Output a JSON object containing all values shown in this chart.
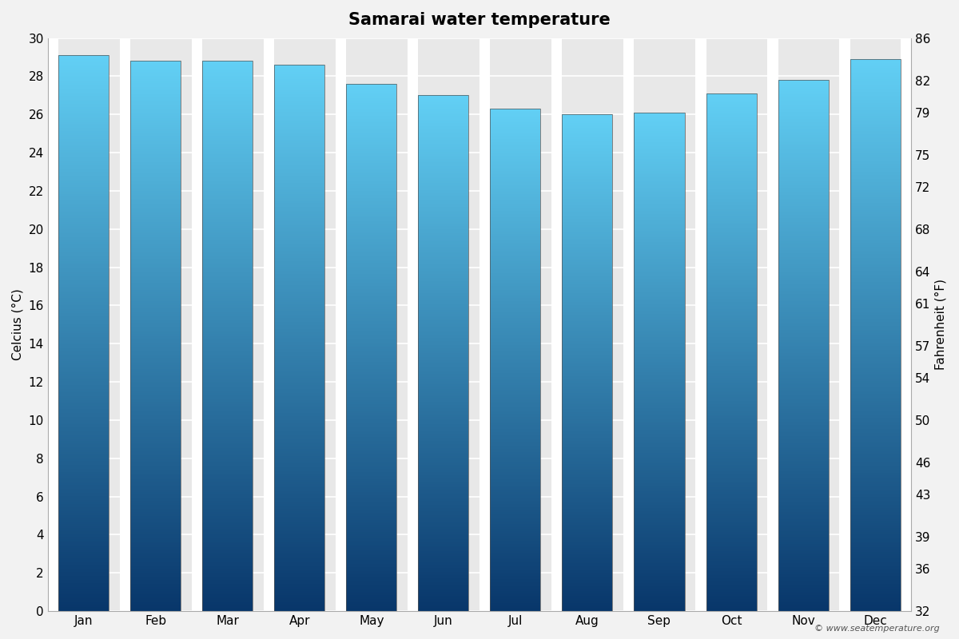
{
  "title": "Samarai water temperature",
  "months": [
    "Jan",
    "Feb",
    "Mar",
    "Apr",
    "May",
    "Jun",
    "Jul",
    "Aug",
    "Sep",
    "Oct",
    "Nov",
    "Dec"
  ],
  "celsius_values": [
    29.1,
    28.8,
    28.8,
    28.6,
    27.6,
    27.0,
    26.3,
    26.0,
    26.1,
    27.1,
    27.8,
    28.9
  ],
  "ylim_celsius": [
    0,
    30
  ],
  "ylim_fahrenheit": [
    32,
    86
  ],
  "yticks_celsius": [
    0,
    2,
    4,
    6,
    8,
    10,
    12,
    14,
    16,
    18,
    20,
    22,
    24,
    26,
    28,
    30
  ],
  "yticks_fahrenheit": [
    32,
    36,
    39,
    43,
    46,
    50,
    54,
    57,
    61,
    64,
    68,
    72,
    75,
    79,
    82,
    86
  ],
  "ylabel_left": "Celcius (°C)",
  "ylabel_right": "Fahrenheit (°F)",
  "color_top": "#62D0F5",
  "color_bottom": "#08366A",
  "background_color": "#F2F2F2",
  "plot_bg_color": "#E8E8E8",
  "bar_gap_color": "#FFFFFF",
  "bar_edge_color": "#555555",
  "title_fontsize": 15,
  "label_fontsize": 11,
  "tick_fontsize": 11,
  "watermark": "© www.seatemperature.org"
}
